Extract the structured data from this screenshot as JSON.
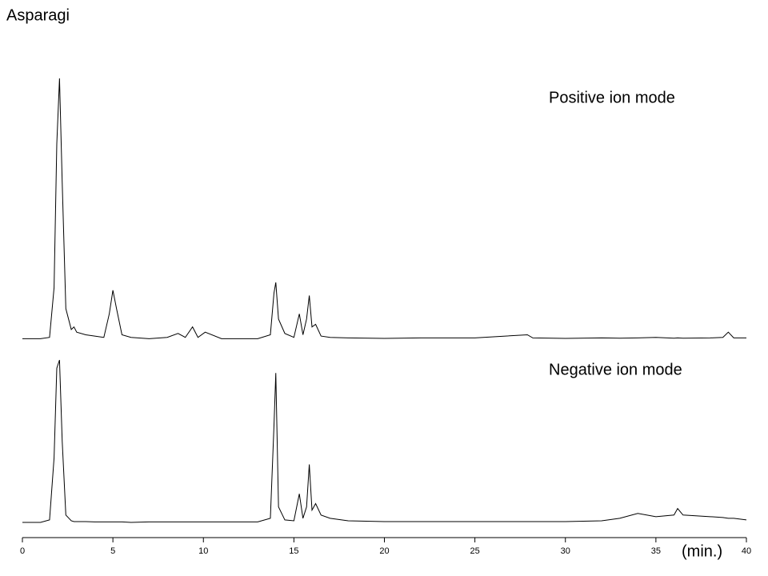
{
  "chart_data": {
    "type": "line",
    "title": "Asparagi",
    "x_label": "(min.)",
    "xlim": [
      0,
      40
    ],
    "xticks": [
      0,
      5,
      10,
      15,
      20,
      25,
      30,
      35,
      40
    ],
    "ylim": [
      0,
      100
    ],
    "x": [
      0,
      1,
      1.5,
      1.75,
      1.9,
      2.05,
      2.2,
      2.4,
      2.7,
      2.85,
      3,
      3.5,
      4,
      4.5,
      4.8,
      5,
      5.2,
      5.5,
      6,
      7,
      8,
      8.6,
      9,
      9.4,
      9.7,
      10.1,
      11,
      12,
      13,
      13.7,
      13.9,
      14,
      14.15,
      14.5,
      15,
      15.3,
      15.5,
      15.7,
      15.85,
      16,
      16.2,
      16.5,
      17,
      18,
      20,
      22,
      25,
      27.9,
      28.2,
      30,
      32,
      33,
      34,
      35,
      36,
      36.2,
      36.5,
      38,
      38.7,
      39,
      39.3,
      40
    ],
    "series": [
      {
        "name": "Positive ion mode",
        "color": "#000000",
        "values": [
          0.5,
          0.5,
          1,
          20,
          75,
          100,
          60,
          12,
          4,
          5,
          3,
          2,
          1.5,
          1,
          10,
          19,
          12,
          2,
          1,
          0.5,
          1,
          2.5,
          1,
          5,
          1,
          3,
          0.5,
          0.5,
          0.5,
          2,
          18,
          22,
          8,
          2.5,
          1,
          10,
          2,
          8,
          17,
          5,
          6,
          1.5,
          1,
          0.8,
          0.6,
          0.8,
          0.8,
          2,
          0.8,
          0.6,
          0.8,
          0.7,
          0.8,
          1,
          0.7,
          0.8,
          0.7,
          0.8,
          1,
          3,
          0.8,
          0.8
        ]
      },
      {
        "name": "Negative ion mode",
        "color": "#000000",
        "values": [
          0.5,
          0.5,
          2,
          40,
          95,
          100,
          50,
          5,
          1.5,
          1,
          1,
          1,
          0.8,
          0.8,
          0.8,
          0.8,
          0.8,
          0.8,
          0.5,
          0.8,
          0.8,
          0.8,
          0.8,
          0.8,
          0.8,
          0.8,
          0.8,
          0.8,
          0.8,
          3,
          60,
          92,
          10,
          2,
          1.5,
          18,
          3,
          10,
          36,
          8,
          12,
          5,
          3,
          1.5,
          1,
          1,
          1,
          1,
          1,
          1,
          1.5,
          3,
          6,
          4,
          5,
          9,
          5,
          4,
          3.5,
          3,
          3,
          2
        ]
      }
    ]
  }
}
